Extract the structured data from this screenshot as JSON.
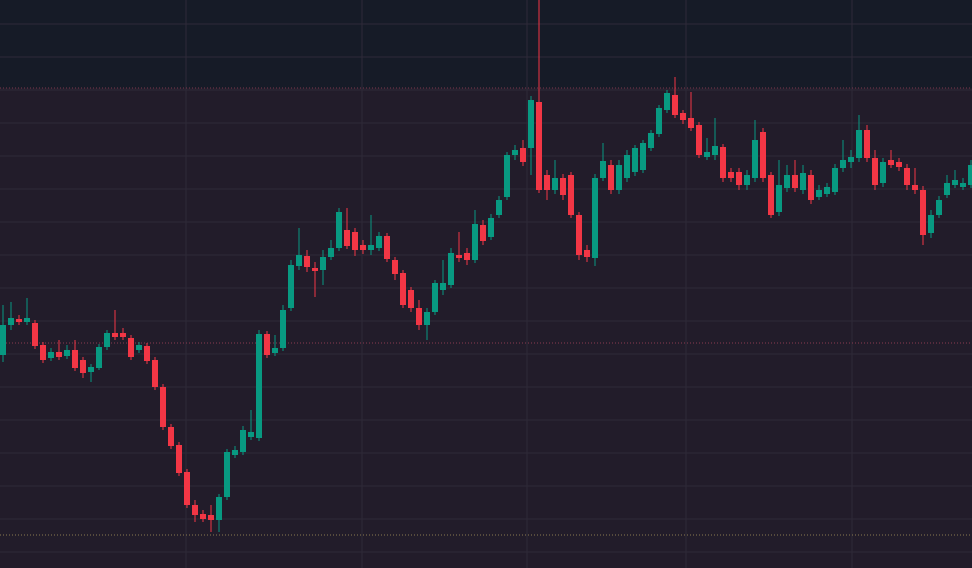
{
  "chart_data": {
    "type": "candlestick",
    "ylim": [
      0,
      568
    ],
    "yticks": [
      16,
      49,
      82,
      115,
      148,
      181,
      214,
      247,
      280,
      313,
      346,
      379,
      412,
      445,
      478,
      511,
      544
    ],
    "grid": true,
    "up_color": "#089981",
    "down_color": "#f23645",
    "price_lines": [
      {
        "value": 480,
        "color": "#7a3a4e"
      },
      {
        "value": 225,
        "color": "#8a3a50"
      },
      {
        "value": 33,
        "color": "#8a7a50"
      }
    ],
    "open": [
      213,
      243,
      249,
      246,
      245,
      223,
      210,
      216,
      212,
      218,
      208,
      196,
      200,
      221,
      235,
      235,
      230,
      218,
      222,
      208,
      181,
      141,
      123,
      96,
      63,
      54,
      53,
      48,
      71,
      113,
      116,
      131,
      130,
      234,
      215,
      220,
      260,
      302,
      312,
      300,
      298,
      311,
      320,
      338,
      336,
      323,
      318,
      320,
      332,
      308,
      295,
      278,
      260,
      243,
      256,
      278,
      283,
      313,
      315,
      308,
      343,
      331,
      353,
      371,
      413,
      420,
      420,
      466,
      393,
      378,
      390,
      393,
      353,
      318,
      310,
      390,
      403,
      378,
      390,
      396,
      398,
      420,
      434,
      458,
      473,
      455,
      450,
      443,
      411,
      413,
      421,
      396,
      396,
      383,
      390,
      436,
      393,
      356,
      380,
      393,
      378,
      393,
      371,
      374,
      376,
      400,
      406,
      410,
      438,
      410,
      385,
      408,
      406,
      400,
      383,
      378,
      335,
      353,
      373,
      383,
      381,
      383
    ],
    "high": [
      263,
      266,
      253,
      270,
      248,
      226,
      220,
      228,
      223,
      228,
      211,
      204,
      224,
      238,
      258,
      240,
      233,
      226,
      225,
      211,
      184,
      144,
      126,
      99,
      68,
      58,
      63,
      74,
      119,
      122,
      142,
      158,
      238,
      237,
      233,
      263,
      308,
      340,
      318,
      306,
      318,
      328,
      360,
      360,
      340,
      328,
      353,
      336,
      335,
      311,
      298,
      281,
      268,
      260,
      288,
      308,
      320,
      336,
      320,
      358,
      348,
      354,
      372,
      416,
      423,
      428,
      472,
      568,
      398,
      408,
      394,
      396,
      356,
      323,
      394,
      425,
      408,
      408,
      418,
      423,
      428,
      438,
      463,
      478,
      491,
      458,
      476,
      446,
      430,
      450,
      424,
      400,
      400,
      398,
      448,
      440,
      396,
      408,
      403,
      408,
      403,
      398,
      383,
      385,
      404,
      428,
      418,
      453,
      443,
      418,
      410,
      418,
      410,
      404,
      400,
      382,
      358,
      372,
      393,
      398,
      390,
      408
    ],
    "low": [
      206,
      238,
      243,
      243,
      219,
      205,
      207,
      208,
      209,
      197,
      190,
      186,
      198,
      218,
      228,
      228,
      208,
      215,
      204,
      178,
      138,
      119,
      92,
      60,
      46,
      46,
      36,
      36,
      68,
      110,
      113,
      128,
      127,
      210,
      212,
      217,
      257,
      298,
      296,
      271,
      283,
      308,
      317,
      319,
      312,
      314,
      313,
      317,
      306,
      288,
      260,
      256,
      238,
      228,
      253,
      273,
      280,
      306,
      303,
      305,
      323,
      328,
      350,
      368,
      408,
      402,
      393,
      375,
      368,
      374,
      368,
      350,
      308,
      306,
      302,
      387,
      374,
      374,
      386,
      392,
      395,
      417,
      431,
      455,
      450,
      444,
      437,
      410,
      408,
      408,
      386,
      386,
      378,
      378,
      386,
      386,
      350,
      352,
      376,
      376,
      374,
      364,
      368,
      371,
      373,
      396,
      400,
      406,
      406,
      378,
      381,
      400,
      397,
      378,
      374,
      323,
      330,
      350,
      370,
      380,
      378,
      380
    ],
    "close": [
      243,
      250,
      246,
      250,
      222,
      208,
      216,
      211,
      218,
      200,
      195,
      201,
      221,
      235,
      231,
      231,
      211,
      223,
      207,
      181,
      141,
      122,
      95,
      63,
      53,
      49,
      48,
      71,
      116,
      118,
      138,
      136,
      234,
      213,
      220,
      258,
      303,
      313,
      301,
      297,
      311,
      320,
      356,
      322,
      318,
      318,
      323,
      332,
      309,
      294,
      263,
      260,
      243,
      256,
      285,
      285,
      315,
      310,
      308,
      344,
      327,
      350,
      368,
      413,
      418,
      406,
      468,
      378,
      378,
      390,
      373,
      353,
      313,
      311,
      390,
      407,
      378,
      403,
      413,
      420,
      425,
      435,
      460,
      475,
      453,
      448,
      440,
      413,
      416,
      422,
      390,
      390,
      383,
      393,
      428,
      390,
      353,
      383,
      393,
      380,
      395,
      368,
      378,
      381,
      400,
      408,
      411,
      438,
      410,
      383,
      406,
      403,
      401,
      383,
      378,
      333,
      353,
      368,
      385,
      388,
      385,
      403
    ]
  }
}
